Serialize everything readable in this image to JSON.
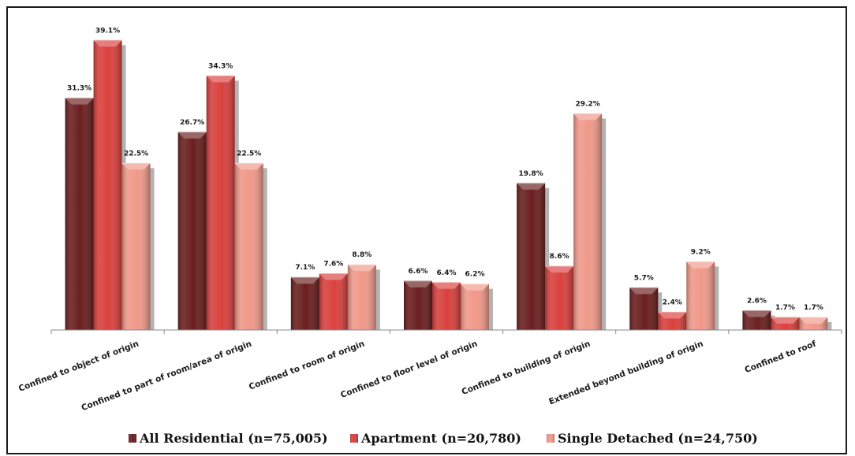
{
  "chart_data": {
    "type": "bar",
    "title": "",
    "xlabel": "",
    "ylabel": "",
    "ylim": [
      0,
      42
    ],
    "grid": false,
    "legend_position": "bottom",
    "value_suffix": "%",
    "categories": [
      "Confined to object of origin",
      "Confined to part of room/area of origin",
      "Confined to room of origin",
      "Confined to floor level of origin",
      "Confined to building of origin",
      "Extended beyond building of origin",
      "Confined to roof"
    ],
    "series": [
      {
        "name": "All Residential (n=75,005)",
        "color": "#6b1f1f",
        "values": [
          31.3,
          26.7,
          7.1,
          6.6,
          19.8,
          5.7,
          2.6
        ]
      },
      {
        "name": "Apartment (n=20,780)",
        "color": "#d9413e",
        "values": [
          39.1,
          34.3,
          7.6,
          6.4,
          8.6,
          2.4,
          1.7
        ]
      },
      {
        "name": "Single Detached (n=24,750)",
        "color": "#f0998a",
        "values": [
          22.5,
          22.5,
          8.8,
          6.2,
          29.2,
          9.2,
          1.7
        ]
      }
    ]
  }
}
